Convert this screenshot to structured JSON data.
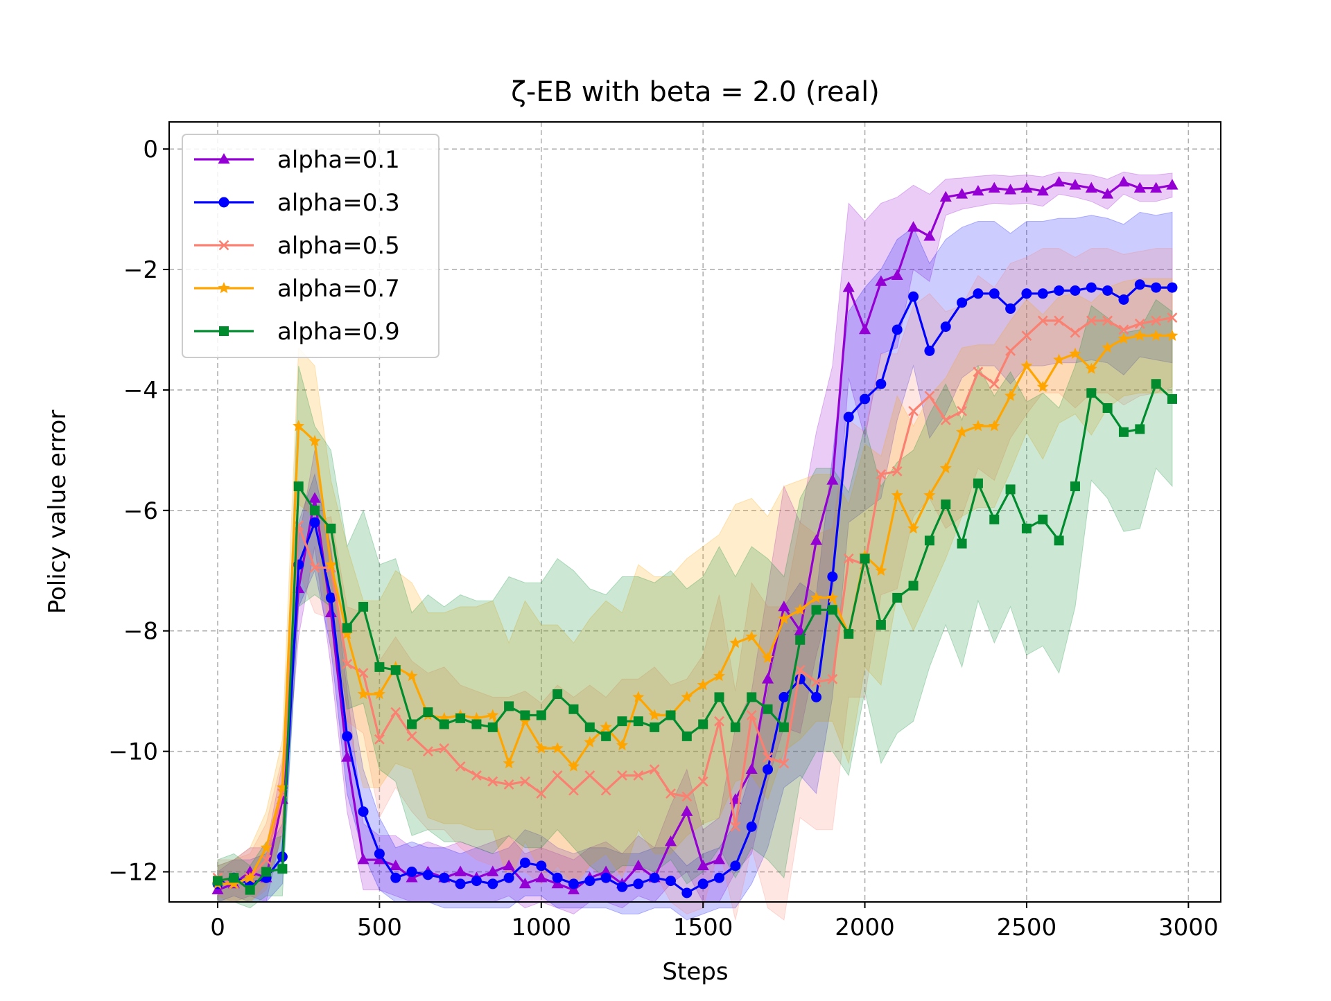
{
  "chart_data": {
    "type": "line",
    "title": "ζ-EB with beta = 2.0 (real)",
    "xlabel": "Steps",
    "ylabel": "Policy value error",
    "xlim": [
      -150,
      3100
    ],
    "ylim": [
      -12.5,
      0.45
    ],
    "xticks": [
      0,
      500,
      1000,
      1500,
      2000,
      2500,
      3000
    ],
    "yticks": [
      0,
      -2,
      -4,
      -6,
      -8,
      -10,
      -12
    ],
    "xtick_labels": [
      "0",
      "500",
      "1000",
      "1500",
      "2000",
      "2500",
      "3000"
    ],
    "ytick_labels": [
      "0",
      "−2",
      "−4",
      "−6",
      "−8",
      "−10",
      "−12"
    ],
    "grid": true,
    "legend_position": "top-left",
    "x": [
      0,
      50,
      100,
      150,
      200,
      250,
      300,
      350,
      400,
      450,
      500,
      550,
      600,
      650,
      700,
      750,
      800,
      850,
      900,
      950,
      1000,
      1050,
      1100,
      1150,
      1200,
      1250,
      1300,
      1350,
      1400,
      1450,
      1500,
      1550,
      1600,
      1650,
      1700,
      1750,
      1800,
      1850,
      1900,
      1950,
      2000,
      2050,
      2100,
      2150,
      2200,
      2250,
      2300,
      2350,
      2400,
      2450,
      2500,
      2550,
      2600,
      2650,
      2700,
      2750,
      2800,
      2850,
      2900,
      2950
    ],
    "series": [
      {
        "name": "alpha=0.1",
        "color": "#9400D3",
        "marker": "triangle",
        "values": [
          -12.3,
          -12.2,
          -12.0,
          -12.1,
          -10.8,
          -7.3,
          -5.8,
          -7.7,
          -10.1,
          -11.8,
          -11.8,
          -11.9,
          -12.1,
          -12.0,
          -12.1,
          -12.0,
          -12.1,
          -12.0,
          -11.9,
          -12.2,
          -12.1,
          -12.2,
          -12.3,
          -12.1,
          -12.0,
          -12.2,
          -11.9,
          -12.1,
          -11.5,
          -11.0,
          -11.9,
          -11.8,
          -10.8,
          -10.3,
          -8.8,
          -7.6,
          -8.0,
          -6.5,
          -5.5,
          -2.3,
          -3.0,
          -2.2,
          -2.1,
          -1.3,
          -1.45,
          -0.8,
          -0.75,
          -0.7,
          -0.65,
          -0.68,
          -0.65,
          -0.7,
          -0.55,
          -0.6,
          -0.65,
          -0.75,
          -0.55,
          -0.65,
          -0.65,
          -0.6
        ],
        "upper": [
          -12.0,
          -11.8,
          -11.6,
          -11.6,
          -10.2,
          -6.5,
          -5.0,
          -6.7,
          -9.0,
          -11.2,
          -11.4,
          -11.4,
          -11.6,
          -11.5,
          -11.6,
          -11.5,
          -11.6,
          -11.5,
          -11.4,
          -11.7,
          -11.6,
          -11.7,
          -11.8,
          -11.6,
          -11.5,
          -11.7,
          -11.4,
          -11.6,
          -10.9,
          -10.3,
          -11.3,
          -11.1,
          -9.6,
          -9.0,
          -7.3,
          -5.6,
          -6.2,
          -4.7,
          -3.6,
          -0.9,
          -1.2,
          -0.9,
          -0.8,
          -0.6,
          -0.75,
          -0.5,
          -0.48,
          -0.45,
          -0.43,
          -0.45,
          -0.43,
          -0.46,
          -0.38,
          -0.4,
          -0.43,
          -0.5,
          -0.38,
          -0.43,
          -0.43,
          -0.4
        ],
        "lower": [
          -12.5,
          -12.5,
          -12.4,
          -12.5,
          -11.3,
          -8.1,
          -6.6,
          -8.6,
          -11.0,
          -12.3,
          -12.3,
          -12.4,
          -12.5,
          -12.5,
          -12.5,
          -12.5,
          -12.5,
          -12.5,
          -12.4,
          -12.6,
          -12.5,
          -12.6,
          -12.7,
          -12.5,
          -12.5,
          -12.6,
          -12.4,
          -12.5,
          -12.2,
          -12.0,
          -12.5,
          -12.5,
          -12.0,
          -11.7,
          -10.5,
          -9.6,
          -9.7,
          -8.4,
          -7.4,
          -3.8,
          -4.8,
          -3.4,
          -3.3,
          -2.0,
          -2.2,
          -1.1,
          -1.0,
          -0.95,
          -0.9,
          -0.92,
          -0.9,
          -0.95,
          -0.75,
          -0.8,
          -0.87,
          -1.0,
          -0.75,
          -0.87,
          -0.87,
          -0.8
        ]
      },
      {
        "name": "alpha=0.3",
        "color": "#0000FF",
        "marker": "circle",
        "values": [
          -12.2,
          -12.1,
          -12.2,
          -12.1,
          -11.75,
          -6.9,
          -6.2,
          -7.45,
          -9.75,
          -11.0,
          -11.7,
          -12.1,
          -12.0,
          -12.05,
          -12.1,
          -12.2,
          -12.15,
          -12.2,
          -12.1,
          -11.85,
          -11.9,
          -12.1,
          -12.2,
          -12.15,
          -12.1,
          -12.25,
          -12.2,
          -12.1,
          -12.15,
          -12.35,
          -12.2,
          -12.1,
          -11.9,
          -11.25,
          -10.3,
          -9.1,
          -8.8,
          -9.1,
          -7.1,
          -4.45,
          -4.15,
          -3.9,
          -3.0,
          -2.45,
          -3.35,
          -2.95,
          -2.55,
          -2.4,
          -2.4,
          -2.65,
          -2.4,
          -2.4,
          -2.35,
          -2.35,
          -2.3,
          -2.35,
          -2.5,
          -2.25,
          -2.3,
          -2.3
        ],
        "upper": [
          -11.9,
          -11.8,
          -11.8,
          -11.7,
          -11.2,
          -6.2,
          -5.4,
          -6.6,
          -8.8,
          -10.3,
          -11.1,
          -11.6,
          -11.5,
          -11.6,
          -11.6,
          -11.7,
          -11.6,
          -11.7,
          -11.6,
          -11.3,
          -11.4,
          -11.6,
          -11.7,
          -11.6,
          -11.6,
          -11.7,
          -11.7,
          -11.6,
          -11.6,
          -11.9,
          -11.7,
          -11.6,
          -11.2,
          -10.3,
          -9.0,
          -7.6,
          -7.2,
          -7.4,
          -5.1,
          -2.7,
          -2.3,
          -2.0,
          -1.5,
          -1.3,
          -1.9,
          -1.5,
          -1.3,
          -1.2,
          -1.2,
          -1.4,
          -1.2,
          -1.2,
          -1.15,
          -1.15,
          -1.1,
          -1.15,
          -1.25,
          -1.05,
          -1.1,
          -1.05
        ],
        "lower": [
          -12.5,
          -12.4,
          -12.5,
          -12.5,
          -12.2,
          -7.6,
          -7.0,
          -8.3,
          -10.7,
          -11.7,
          -12.3,
          -12.5,
          -12.5,
          -12.5,
          -12.6,
          -12.6,
          -12.6,
          -12.6,
          -12.6,
          -12.4,
          -12.4,
          -12.6,
          -12.6,
          -12.6,
          -12.6,
          -12.7,
          -12.7,
          -12.6,
          -12.6,
          -12.8,
          -12.7,
          -12.6,
          -12.6,
          -12.2,
          -11.6,
          -10.6,
          -10.4,
          -10.7,
          -9.1,
          -6.2,
          -6.0,
          -5.8,
          -4.5,
          -3.6,
          -4.8,
          -4.4,
          -3.8,
          -3.6,
          -3.6,
          -3.9,
          -3.6,
          -3.6,
          -3.55,
          -3.55,
          -3.5,
          -3.55,
          -3.75,
          -3.45,
          -3.5,
          -3.55
        ]
      },
      {
        "name": "alpha=0.5",
        "color": "#FA8072",
        "marker": "x",
        "values": [
          -12.1,
          -12.2,
          -12.1,
          -11.8,
          -10.7,
          -6.25,
          -6.95,
          -6.95,
          -8.55,
          -8.7,
          -9.8,
          -9.35,
          -9.75,
          -10.0,
          -9.95,
          -10.25,
          -10.4,
          -10.5,
          -10.55,
          -10.5,
          -10.7,
          -10.4,
          -10.65,
          -10.4,
          -10.65,
          -10.4,
          -10.4,
          -10.3,
          -10.7,
          -10.75,
          -10.5,
          -9.5,
          -11.25,
          -9.4,
          -10.1,
          -10.2,
          -8.65,
          -8.85,
          -8.8,
          -6.8,
          -6.9,
          -5.4,
          -5.35,
          -4.35,
          -4.1,
          -4.5,
          -4.35,
          -3.7,
          -3.9,
          -3.35,
          -3.1,
          -2.85,
          -2.85,
          -3.05,
          -2.85,
          -2.85,
          -3.0,
          -2.9,
          -2.85,
          -2.8
        ],
        "upper": [
          -11.8,
          -11.8,
          -11.7,
          -11.2,
          -10.1,
          -5.5,
          -6.2,
          -6.1,
          -7.6,
          -7.7,
          -8.5,
          -8.1,
          -8.5,
          -8.7,
          -8.6,
          -8.9,
          -9.0,
          -9.1,
          -9.1,
          -9.0,
          -9.2,
          -8.9,
          -9.1,
          -8.9,
          -9.1,
          -8.8,
          -8.8,
          -8.6,
          -8.9,
          -8.8,
          -8.4,
          -7.4,
          -9.0,
          -7.2,
          -7.6,
          -7.6,
          -6.2,
          -6.4,
          -6.3,
          -4.5,
          -4.7,
          -3.4,
          -3.4,
          -2.6,
          -2.4,
          -2.7,
          -2.6,
          -2.1,
          -2.3,
          -1.9,
          -1.8,
          -1.65,
          -1.65,
          -1.8,
          -1.65,
          -1.65,
          -1.75,
          -1.7,
          -1.65,
          -1.65
        ],
        "lower": [
          -12.4,
          -12.5,
          -12.5,
          -12.3,
          -11.3,
          -7.0,
          -7.7,
          -7.8,
          -9.5,
          -9.7,
          -11.1,
          -10.6,
          -11.0,
          -11.3,
          -11.3,
          -11.6,
          -11.8,
          -11.9,
          -12.0,
          -12.0,
          -12.2,
          -11.9,
          -12.2,
          -11.9,
          -12.2,
          -12.0,
          -12.0,
          -12.0,
          -12.5,
          -12.7,
          -12.6,
          -11.6,
          -12.9,
          -11.6,
          -12.6,
          -12.8,
          -11.1,
          -11.3,
          -11.3,
          -9.1,
          -9.1,
          -7.4,
          -7.3,
          -6.1,
          -5.8,
          -6.3,
          -6.1,
          -5.3,
          -5.5,
          -4.8,
          -4.4,
          -4.05,
          -4.05,
          -4.3,
          -4.05,
          -4.05,
          -4.25,
          -4.1,
          -4.05,
          -3.95
        ]
      },
      {
        "name": "alpha=0.7",
        "color": "#FFA500",
        "marker": "star",
        "values": [
          -12.2,
          -12.2,
          -12.1,
          -11.6,
          -10.6,
          -4.6,
          -4.85,
          -6.9,
          -8.05,
          -9.05,
          -9.05,
          -8.6,
          -8.75,
          -9.4,
          -9.45,
          -9.4,
          -9.45,
          -9.4,
          -10.2,
          -9.5,
          -9.95,
          -9.95,
          -10.25,
          -9.85,
          -9.6,
          -9.9,
          -9.1,
          -9.4,
          -9.4,
          -9.1,
          -8.9,
          -8.75,
          -8.2,
          -8.1,
          -8.45,
          -7.8,
          -7.65,
          -7.45,
          -7.45,
          -8.05,
          -6.75,
          -7.0,
          -5.75,
          -6.3,
          -5.75,
          -5.3,
          -4.7,
          -4.6,
          -4.6,
          -4.1,
          -3.6,
          -3.95,
          -3.5,
          -3.4,
          -3.65,
          -3.3,
          -3.15,
          -3.1,
          -3.1,
          -3.1
        ],
        "upper": [
          -11.9,
          -11.8,
          -11.6,
          -11.0,
          -9.8,
          -3.3,
          -3.6,
          -5.5,
          -6.6,
          -7.5,
          -7.5,
          -7.0,
          -7.2,
          -7.7,
          -7.7,
          -7.6,
          -7.6,
          -7.5,
          -8.2,
          -7.5,
          -7.9,
          -7.9,
          -8.2,
          -7.8,
          -7.5,
          -7.7,
          -6.9,
          -7.1,
          -7.1,
          -6.8,
          -6.6,
          -6.4,
          -5.9,
          -5.8,
          -6.1,
          -5.6,
          -5.5,
          -5.4,
          -5.4,
          -5.9,
          -4.9,
          -5.1,
          -4.1,
          -4.6,
          -4.1,
          -3.8,
          -3.3,
          -3.25,
          -3.25,
          -2.85,
          -2.5,
          -2.75,
          -2.45,
          -2.4,
          -2.55,
          -2.3,
          -2.2,
          -2.15,
          -2.15,
          -2.15
        ],
        "lower": [
          -12.5,
          -12.5,
          -12.5,
          -12.2,
          -11.4,
          -5.9,
          -6.1,
          -8.3,
          -9.5,
          -10.6,
          -10.6,
          -10.2,
          -10.3,
          -11.1,
          -11.2,
          -11.2,
          -11.3,
          -11.3,
          -12.2,
          -11.5,
          -12.0,
          -12.0,
          -12.3,
          -11.9,
          -11.7,
          -12.1,
          -11.3,
          -11.7,
          -11.7,
          -11.4,
          -11.2,
          -11.1,
          -10.5,
          -10.4,
          -10.8,
          -10.0,
          -9.8,
          -9.5,
          -9.5,
          -10.2,
          -8.6,
          -8.9,
          -7.4,
          -8.0,
          -7.4,
          -6.8,
          -6.1,
          -5.95,
          -5.95,
          -5.35,
          -4.7,
          -5.15,
          -4.55,
          -4.4,
          -4.75,
          -4.3,
          -4.1,
          -4.05,
          -4.05,
          -4.05
        ]
      },
      {
        "name": "alpha=0.9",
        "color": "#008B2E",
        "marker": "square",
        "values": [
          -12.15,
          -12.1,
          -12.3,
          -12.0,
          -11.95,
          -5.6,
          -6.0,
          -6.3,
          -7.95,
          -7.6,
          -8.6,
          -8.65,
          -9.55,
          -9.35,
          -9.55,
          -9.45,
          -9.55,
          -9.6,
          -9.25,
          -9.4,
          -9.4,
          -9.05,
          -9.3,
          -9.6,
          -9.75,
          -9.5,
          -9.5,
          -9.6,
          -9.4,
          -9.75,
          -9.55,
          -9.1,
          -9.6,
          -9.1,
          -9.3,
          -9.6,
          -8.15,
          -7.65,
          -7.65,
          -8.05,
          -6.8,
          -7.9,
          -7.45,
          -7.25,
          -6.5,
          -5.9,
          -6.55,
          -5.55,
          -6.15,
          -5.65,
          -6.3,
          -6.15,
          -6.5,
          -5.6,
          -4.05,
          -4.3,
          -4.7,
          -4.65,
          -3.9,
          -4.15
        ],
        "upper": [
          -11.8,
          -11.7,
          -11.9,
          -11.5,
          -11.4,
          -3.6,
          -4.6,
          -5.0,
          -6.6,
          -6.0,
          -6.9,
          -6.8,
          -7.7,
          -7.4,
          -7.6,
          -7.4,
          -7.5,
          -7.5,
          -7.1,
          -7.2,
          -7.2,
          -6.8,
          -7.0,
          -7.3,
          -7.4,
          -7.1,
          -7.1,
          -7.2,
          -7.0,
          -7.3,
          -7.1,
          -6.6,
          -7.1,
          -6.6,
          -6.8,
          -7.1,
          -5.8,
          -5.3,
          -5.3,
          -5.7,
          -4.6,
          -5.6,
          -5.2,
          -5.0,
          -4.4,
          -3.9,
          -4.5,
          -3.6,
          -4.1,
          -3.7,
          -4.2,
          -4.05,
          -4.3,
          -3.6,
          -2.6,
          -2.8,
          -3.05,
          -3.0,
          -2.5,
          -2.7
        ],
        "lower": [
          -12.5,
          -12.5,
          -12.6,
          -12.4,
          -12.4,
          -7.6,
          -7.4,
          -7.6,
          -9.3,
          -9.2,
          -10.3,
          -10.5,
          -11.4,
          -11.3,
          -11.5,
          -11.5,
          -11.6,
          -11.7,
          -11.4,
          -11.6,
          -11.6,
          -11.3,
          -11.6,
          -11.9,
          -12.1,
          -11.9,
          -11.9,
          -12.0,
          -11.8,
          -12.2,
          -12.0,
          -11.6,
          -12.1,
          -11.6,
          -11.8,
          -12.1,
          -10.5,
          -10.0,
          -10.0,
          -10.4,
          -9.0,
          -10.2,
          -9.7,
          -9.5,
          -8.6,
          -7.9,
          -8.6,
          -7.5,
          -8.2,
          -7.6,
          -8.4,
          -8.25,
          -8.7,
          -7.6,
          -5.5,
          -5.8,
          -6.35,
          -6.3,
          -5.3,
          -5.6
        ]
      }
    ]
  }
}
